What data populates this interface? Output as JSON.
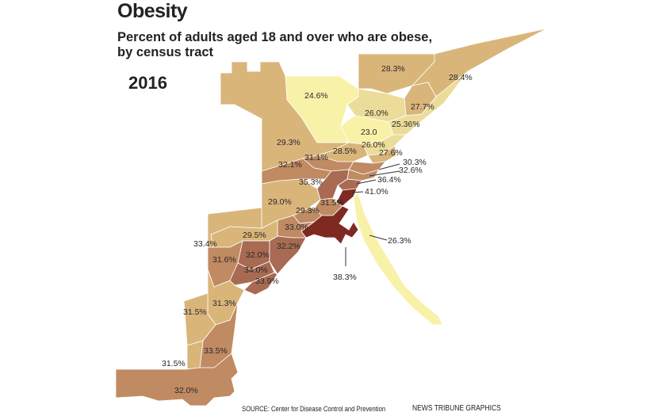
{
  "title": "Obesity",
  "subtitle": "Percent of adults aged 18 and over who are obese,\nby census tract",
  "year": "2016",
  "source": "SOURCE: Center for Disease Control and Prevention",
  "credit": "NEWS TRIBUNE GRAPHICS",
  "colors": {
    "lightest": "#f8f1a8",
    "light": "#ecdc9a",
    "tan": "#d9b57a",
    "medium_brown": "#c08a62",
    "brown": "#a86a52",
    "dark_red": "#7e2a22"
  },
  "tracts": [
    {
      "label": "28.3%",
      "value": 28.3
    },
    {
      "label": "28.4%",
      "value": 28.4
    },
    {
      "label": "24.6%",
      "value": 24.6
    },
    {
      "label": "27.7%",
      "value": 27.7
    },
    {
      "label": "26.0%",
      "value": 26.0
    },
    {
      "label": "25.36%",
      "value": 25.36
    },
    {
      "label": "23.0",
      "value": 23.0
    },
    {
      "label": "29.3%",
      "value": 29.3
    },
    {
      "label": "26.0%",
      "value": 26.0
    },
    {
      "label": "28.5%",
      "value": 28.5
    },
    {
      "label": "27.6%",
      "value": 27.6
    },
    {
      "label": "31.1%",
      "value": 31.1
    },
    {
      "label": "30.3%",
      "value": 30.3
    },
    {
      "label": "32.1%",
      "value": 32.1
    },
    {
      "label": "32.6%",
      "value": 32.6
    },
    {
      "label": "36.4%",
      "value": 36.4
    },
    {
      "label": "35.3%",
      "value": 35.3
    },
    {
      "label": "41.0%",
      "value": 41.0
    },
    {
      "label": "29.0%",
      "value": 29.0
    },
    {
      "label": "31.5%",
      "value": 31.5
    },
    {
      "label": "29.3%",
      "value": 29.3
    },
    {
      "label": "33.0%",
      "value": 33.0
    },
    {
      "label": "26.3%",
      "value": 26.3
    },
    {
      "label": "29.5%",
      "value": 29.5
    },
    {
      "label": "33.4%",
      "value": 33.4
    },
    {
      "label": "32.0%",
      "value": 32.0
    },
    {
      "label": "32.2%",
      "value": 32.2
    },
    {
      "label": "31.6%",
      "value": 31.6
    },
    {
      "label": "34.0%",
      "value": 34.0
    },
    {
      "label": "33.9%",
      "value": 33.9
    },
    {
      "label": "38.3%",
      "value": 38.3
    },
    {
      "label": "31.3%",
      "value": 31.3
    },
    {
      "label": "31.5%",
      "value": 31.5
    },
    {
      "label": "33.5%",
      "value": 33.5
    },
    {
      "label": "31.5%",
      "value": 31.5
    },
    {
      "label": "32.0%",
      "value": 32.0
    }
  ]
}
